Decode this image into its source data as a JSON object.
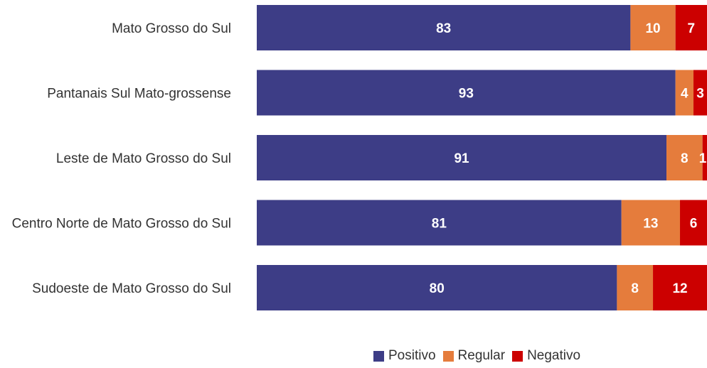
{
  "chart_data": {
    "type": "bar",
    "orientation": "horizontal",
    "stacked": true,
    "categories": [
      "Mato Grosso do Sul",
      "Pantanais Sul Mato-grossense",
      "Leste de Mato Grosso do Sul",
      "Centro Norte de Mato Grosso do Sul",
      "Sudoeste de Mato Grosso do Sul"
    ],
    "series": [
      {
        "name": "Positivo",
        "color": "#3d3d86",
        "values": [
          83,
          93,
          91,
          81,
          80
        ]
      },
      {
        "name": "Regular",
        "color": "#e57c3c",
        "values": [
          10,
          4,
          8,
          13,
          8
        ]
      },
      {
        "name": "Negativo",
        "color": "#cc0000",
        "values": [
          7,
          3,
          1,
          6,
          12
        ]
      }
    ],
    "xlim": [
      0,
      100
    ],
    "grid": false,
    "legend_position": "bottom",
    "data_labels": true
  }
}
